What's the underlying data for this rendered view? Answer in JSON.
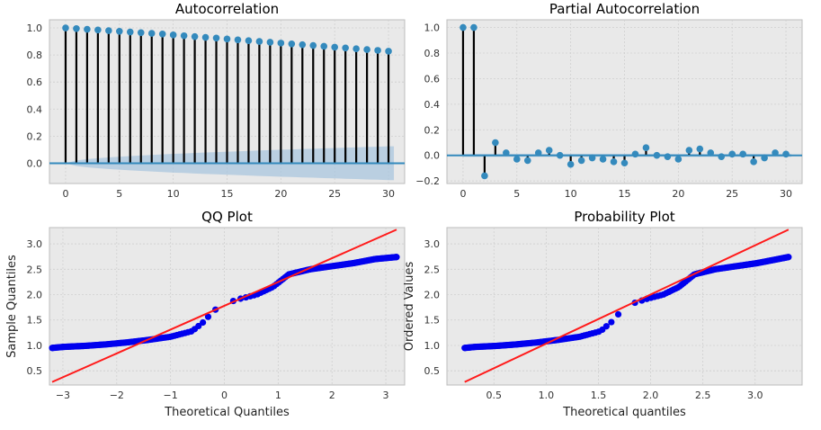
{
  "chart_data": [
    {
      "type": "stem",
      "title": "Autocorrelation",
      "xlabel": "",
      "ylabel": "",
      "xlim": [
        -1.5,
        31.5
      ],
      "ylim": [
        -0.15,
        1.06
      ],
      "xticks": [
        0,
        5,
        10,
        15,
        20,
        25,
        30
      ],
      "yticks": [
        0.0,
        0.2,
        0.4,
        0.6,
        0.8,
        1.0
      ],
      "lags": [
        0,
        1,
        2,
        3,
        4,
        5,
        6,
        7,
        8,
        9,
        10,
        11,
        12,
        13,
        14,
        15,
        16,
        17,
        18,
        19,
        20,
        21,
        22,
        23,
        24,
        25,
        26,
        27,
        28,
        29,
        30
      ],
      "values": [
        1.0,
        0.995,
        0.99,
        0.985,
        0.98,
        0.975,
        0.97,
        0.965,
        0.96,
        0.955,
        0.948,
        0.942,
        0.936,
        0.93,
        0.925,
        0.918,
        0.912,
        0.906,
        0.9,
        0.894,
        0.888,
        0.882,
        0.876,
        0.87,
        0.864,
        0.858,
        0.852,
        0.846,
        0.84,
        0.834,
        0.828
      ],
      "conf_band_upper": [
        0.0,
        0.02,
        0.03,
        0.037,
        0.043,
        0.048,
        0.053,
        0.057,
        0.061,
        0.065,
        0.069,
        0.072,
        0.076,
        0.079,
        0.082,
        0.085,
        0.088,
        0.091,
        0.094,
        0.097,
        0.1,
        0.102,
        0.105,
        0.107,
        0.11,
        0.112,
        0.115,
        0.117,
        0.12,
        0.122,
        0.125
      ],
      "colors": {
        "marker": "#348abd",
        "stem": "#000000",
        "band": "#a9c5de",
        "zero": "#348abd"
      }
    },
    {
      "type": "stem",
      "title": "Partial Autocorrelation",
      "xlabel": "",
      "ylabel": "",
      "xlim": [
        -1.5,
        31.5
      ],
      "ylim": [
        -0.22,
        1.06
      ],
      "xticks": [
        0,
        5,
        10,
        15,
        20,
        25,
        30
      ],
      "yticks": [
        -0.2,
        0.0,
        0.2,
        0.4,
        0.6,
        0.8,
        1.0
      ],
      "lags": [
        0,
        1,
        2,
        3,
        4,
        5,
        6,
        7,
        8,
        9,
        10,
        11,
        12,
        13,
        14,
        15,
        16,
        17,
        18,
        19,
        20,
        21,
        22,
        23,
        24,
        25,
        26,
        27,
        28,
        29,
        30
      ],
      "values": [
        1.0,
        1.0,
        -0.16,
        0.1,
        0.02,
        -0.03,
        -0.04,
        0.02,
        0.04,
        0.0,
        -0.07,
        -0.04,
        -0.02,
        -0.03,
        -0.05,
        -0.06,
        0.01,
        0.06,
        0.0,
        -0.01,
        -0.03,
        0.04,
        0.05,
        0.02,
        -0.01,
        0.01,
        0.01,
        -0.05,
        -0.02,
        0.02,
        0.01
      ],
      "conf_band_upper": 0.012,
      "colors": {
        "marker": "#348abd",
        "stem": "#000000",
        "band": "#a9c5de",
        "zero": "#348abd"
      }
    },
    {
      "type": "scatter",
      "title": "QQ Plot",
      "xlabel": "Theoretical Quantiles",
      "ylabel": "Sample Quantiles",
      "xlim": [
        -3.25,
        3.35
      ],
      "ylim": [
        0.22,
        3.32
      ],
      "xticks": [
        -3,
        -2,
        -1,
        0,
        1,
        2,
        3
      ],
      "yticks": [
        0.5,
        1.0,
        1.5,
        2.0,
        2.5,
        3.0
      ],
      "points": {
        "x_range": [
          -3.2,
          3.2
        ],
        "curve": [
          [
            -3.2,
            0.95
          ],
          [
            -3.0,
            0.97
          ],
          [
            -2.6,
            0.99
          ],
          [
            -2.2,
            1.02
          ],
          [
            -1.8,
            1.06
          ],
          [
            -1.4,
            1.11
          ],
          [
            -1.0,
            1.17
          ],
          [
            -0.6,
            1.28
          ],
          [
            -0.4,
            1.45
          ],
          [
            -0.2,
            1.68
          ],
          [
            0.0,
            1.82
          ],
          [
            0.3,
            1.92
          ],
          [
            0.6,
            2.0
          ],
          [
            0.9,
            2.15
          ],
          [
            1.2,
            2.4
          ],
          [
            1.6,
            2.5
          ],
          [
            2.0,
            2.56
          ],
          [
            2.4,
            2.62
          ],
          [
            2.8,
            2.7
          ],
          [
            3.2,
            2.74
          ]
        ]
      },
      "line": {
        "x": [
          -3.2,
          3.2
        ],
        "y": [
          0.28,
          3.28
        ]
      },
      "colors": {
        "points": "#0000ee",
        "line": "#ff1a1a"
      }
    },
    {
      "type": "scatter",
      "title": "Probability Plot",
      "xlabel": "Theoretical quantiles",
      "ylabel": "Ordered Values",
      "xlim": [
        0.05,
        3.45
      ],
      "ylim": [
        0.22,
        3.32
      ],
      "xticks": [
        0.5,
        1.0,
        1.5,
        2.0,
        2.5,
        3.0
      ],
      "yticks": [
        0.5,
        1.0,
        1.5,
        2.0,
        2.5,
        3.0
      ],
      "points": {
        "x_range": [
          0.22,
          3.32
        ],
        "curve": [
          [
            0.22,
            0.95
          ],
          [
            0.32,
            0.97
          ],
          [
            0.52,
            0.99
          ],
          [
            0.72,
            1.02
          ],
          [
            0.92,
            1.06
          ],
          [
            1.12,
            1.11
          ],
          [
            1.32,
            1.17
          ],
          [
            1.52,
            1.28
          ],
          [
            1.62,
            1.45
          ],
          [
            1.72,
            1.68
          ],
          [
            1.82,
            1.82
          ],
          [
            1.97,
            1.92
          ],
          [
            2.12,
            2.0
          ],
          [
            2.27,
            2.15
          ],
          [
            2.42,
            2.4
          ],
          [
            2.62,
            2.5
          ],
          [
            2.82,
            2.56
          ],
          [
            3.02,
            2.62
          ],
          [
            3.22,
            2.7
          ],
          [
            3.32,
            2.74
          ]
        ]
      },
      "line": {
        "x": [
          0.22,
          3.32
        ],
        "y": [
          0.28,
          3.28
        ]
      },
      "colors": {
        "points": "#0000ee",
        "line": "#ff1a1a"
      }
    }
  ]
}
